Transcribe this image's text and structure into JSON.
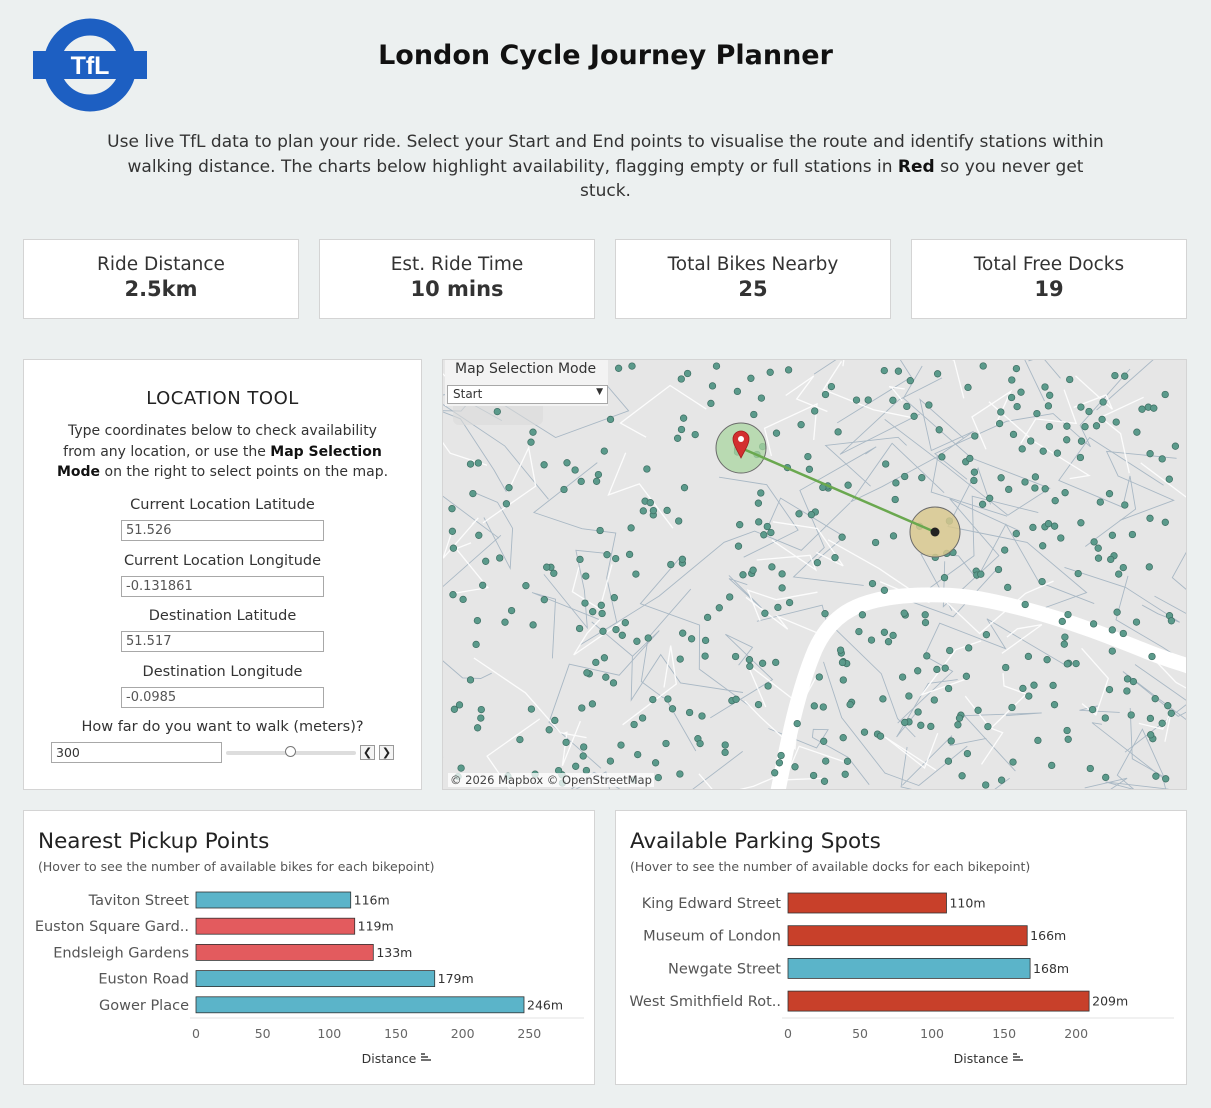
{
  "header": {
    "logo_text": "TfL",
    "title": "London Cycle Journey Planner",
    "intro_part1": "Use live TfL data to plan your ride. Select your Start and End points to visualise the route and identify stations within walking distance. The charts below highlight availability, flagging empty or full stations in ",
    "intro_bold": "Red",
    "intro_part2": " so you never get stuck."
  },
  "kpis": [
    {
      "label": "Ride Distance",
      "value": "2.5km"
    },
    {
      "label": "Est. Ride Time",
      "value": "10 mins"
    },
    {
      "label": "Total Bikes Nearby",
      "value": "25"
    },
    {
      "label": "Total Free Docks",
      "value": "19"
    }
  ],
  "location_tool": {
    "title": "LOCATION TOOL",
    "desc_part1": "Type coordinates below to check availability from any location, or use the ",
    "desc_bold": "Map Selection Mode",
    "desc_part2": " on the right to select points on the map.",
    "fields": [
      {
        "label": "Current Location Latitude",
        "value": "51.526"
      },
      {
        "label": "Current Location Longitude",
        "value": "-0.131861"
      },
      {
        "label": "Destination Latitude",
        "value": "51.517"
      },
      {
        "label": "Destination Longitude",
        "value": "-0.0985"
      }
    ],
    "walk_label": "How far do you want to walk (meters)?",
    "walk_value": "300",
    "step_prev": "❮",
    "step_next": "❯"
  },
  "map": {
    "mode_title": "Map Selection Mode",
    "mode_value": "Start",
    "attribution": "© 2026 Mapbox © OpenStreetMap",
    "station_color": "#5b9a8b",
    "route_color": "#6aa84f",
    "start_circle_color": "#a9d6a0",
    "end_circle_color": "#d8c88e",
    "marker_color": "#d32f2f"
  },
  "colors": {
    "ok": "#5bb4c9",
    "empty_pickup": "#e35b5e",
    "full_parking": "#c8402a"
  },
  "chart_data": [
    {
      "type": "bar",
      "title": "Nearest Pickup Points",
      "subtitle": "(Hover to see the number of available bikes for each bikepoint)",
      "xlabel": "Distance",
      "categories": [
        "Taviton Street",
        "Euston Square Gard..",
        "Endsleigh Gardens",
        "Euston Road",
        "Gower Place"
      ],
      "values": [
        116,
        119,
        133,
        179,
        246
      ],
      "value_labels": [
        "116m",
        "119m",
        "133m",
        "179m",
        "246m"
      ],
      "status": [
        "ok",
        "empty",
        "empty",
        "ok",
        "ok"
      ],
      "xticks": [
        0,
        50,
        100,
        150,
        200,
        250
      ],
      "xlim": [
        0,
        270
      ]
    },
    {
      "type": "bar",
      "title": "Available Parking Spots",
      "subtitle": "(Hover to see the number of available docks  for each bikepoint)",
      "xlabel": "Distance",
      "categories": [
        "King Edward Street",
        "Museum of London",
        "Newgate Street",
        "West Smithfield Rot.."
      ],
      "values": [
        110,
        166,
        168,
        209
      ],
      "value_labels": [
        "110m",
        "166m",
        "168m",
        "209m"
      ],
      "status": [
        "full",
        "full",
        "ok",
        "full"
      ],
      "xticks": [
        0,
        50,
        100,
        150,
        200
      ],
      "xlim": [
        0,
        245
      ]
    }
  ]
}
